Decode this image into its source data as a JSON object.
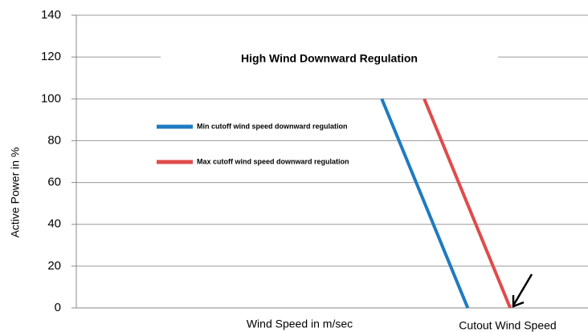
{
  "chart_data": {
    "type": "line",
    "title": "High Wind Downward Regulation",
    "x_label": "Wind Speed in m/sec",
    "y_label": "Active Power in %",
    "annotation": "Cutout Wind Speed",
    "xlim": [
      0,
      100
    ],
    "ylim": [
      0,
      140
    ],
    "yticks": [
      0,
      20,
      40,
      60,
      80,
      100,
      120,
      140
    ],
    "grid": true,
    "legend": "upper left",
    "series": [
      {
        "name": "Min cutoff wind speed downward regulation",
        "color": "#1f7bc0",
        "x": [
          59.7,
          76.5
        ],
        "values": [
          100,
          0
        ]
      },
      {
        "name": "Max cutoff wind speed downward regulation",
        "color": "#e04b4b",
        "x": [
          68.0,
          84.8
        ],
        "values": [
          100,
          0
        ]
      }
    ]
  }
}
